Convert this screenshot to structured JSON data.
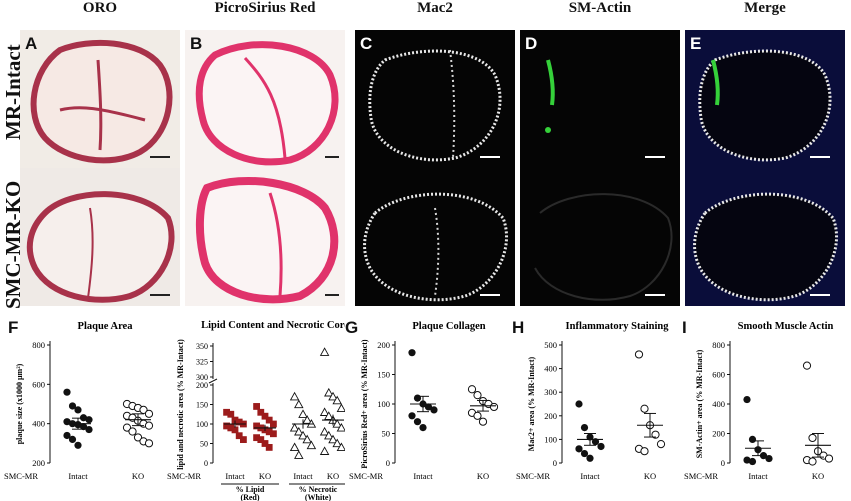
{
  "columns": [
    "ORO",
    "PicroSirius  Red",
    "Mac2",
    "SM-Actin",
    "Merge"
  ],
  "rows": [
    "MR-Intact",
    "SMC-MR-KO"
  ],
  "panel_letters": [
    "A",
    "B",
    "C",
    "D",
    "E"
  ],
  "chart_data": [
    {
      "letter": "F",
      "type": "scatter",
      "title": "Plaque Area",
      "ylabel": "plaque size (x1000 µm²)",
      "ylim": [
        200,
        800
      ],
      "yticks": [
        "200",
        "400",
        "600",
        "800"
      ],
      "group_label": "SMC-MR",
      "categories": [
        "Intact",
        "KO"
      ],
      "series": [
        {
          "category": "Intact",
          "marker": "filled-circle",
          "mean": 400,
          "sem": 28,
          "values": [
            560,
            490,
            470,
            430,
            420,
            410,
            400,
            395,
            385,
            370,
            340,
            320,
            290
          ]
        },
        {
          "category": "KO",
          "marker": "open-circle",
          "mean": 420,
          "sem": 30,
          "values": [
            500,
            490,
            480,
            470,
            450,
            440,
            430,
            415,
            400,
            390,
            380,
            360,
            330,
            310,
            300
          ]
        }
      ]
    },
    {
      "letter": "",
      "type": "scatter",
      "title": "Lipid  Content and Necrotic Core",
      "ylabel": "lipid and necrotic area (% MR-Intact)",
      "yticks": [
        "0",
        "50",
        "100",
        "150",
        "200",
        "300",
        "325",
        "350"
      ],
      "group_label": "SMC-MR",
      "categories": [
        "Intact",
        "KO",
        "Intact",
        "KO"
      ],
      "group_labels": [
        "% Lipid (Red)",
        "% Necrotic (White)"
      ],
      "series": [
        {
          "category": "Intact",
          "group": "% Lipid (Red)",
          "marker": "filled-square",
          "mean": 100,
          "sem": 9,
          "values": [
            130,
            125,
            110,
            105,
            100,
            95,
            90,
            85,
            70,
            60
          ]
        },
        {
          "category": "KO",
          "group": "% Lipid (Red)",
          "marker": "filled-square",
          "mean": 90,
          "sem": 8,
          "values": [
            145,
            130,
            120,
            110,
            100,
            95,
            90,
            85,
            80,
            75,
            65,
            60,
            50,
            40
          ]
        },
        {
          "category": "Intact",
          "group": "% Necrotic (White)",
          "marker": "open-triangle",
          "mean": 100,
          "sem": 12,
          "values": [
            170,
            150,
            125,
            110,
            100,
            90,
            80,
            70,
            60,
            45,
            40,
            20
          ]
        },
        {
          "category": "KO",
          "group": "% Necrotic (White)",
          "marker": "open-triangle",
          "mean": 110,
          "sem": 14,
          "values": [
            340,
            180,
            170,
            160,
            140,
            130,
            120,
            110,
            100,
            90,
            80,
            70,
            60,
            50,
            40,
            30
          ]
        }
      ]
    },
    {
      "letter": "G",
      "type": "scatter",
      "title": "Plaque Collagen",
      "ylabel": "PicroSirius Red+ area (% MR-Intact)",
      "ylim": [
        0,
        200
      ],
      "yticks": [
        "0",
        "50",
        "100",
        "150",
        "200"
      ],
      "group_label": "SMC-MR",
      "categories": [
        "Intact",
        "KO"
      ],
      "series": [
        {
          "category": "Intact",
          "marker": "filled-circle",
          "mean": 100,
          "sem": 13,
          "values": [
            187,
            110,
            100,
            95,
            90,
            80,
            70,
            60
          ]
        },
        {
          "category": "KO",
          "marker": "open-circle",
          "mean": 97,
          "sem": 9,
          "values": [
            125,
            115,
            105,
            100,
            95,
            85,
            80,
            70
          ]
        }
      ]
    },
    {
      "letter": "H",
      "type": "scatter",
      "title": "Inflammatory Staining",
      "ylabel": "Mac2+ area (% MR-Intact)",
      "ylim": [
        0,
        500
      ],
      "yticks": [
        "0",
        "100",
        "200",
        "300",
        "400",
        "500"
      ],
      "group_label": "SMC-MR",
      "categories": [
        "Intact",
        "KO"
      ],
      "series": [
        {
          "category": "Intact",
          "marker": "filled-circle",
          "mean": 100,
          "sem": 25,
          "values": [
            250,
            150,
            110,
            90,
            70,
            60,
            40,
            20
          ]
        },
        {
          "category": "KO",
          "marker": "open-circle",
          "mean": 160,
          "sem": 50,
          "values": [
            460,
            230,
            160,
            120,
            80,
            60,
            50
          ]
        }
      ]
    },
    {
      "letter": "I",
      "type": "scatter",
      "title": "Smooth Muscle Actin",
      "ylabel": "SM-Actin+ area (% MR-Intact)",
      "ylim": [
        0,
        800
      ],
      "yticks": [
        "0",
        "200",
        "400",
        "600",
        "800"
      ],
      "group_label": "SMC-MR",
      "categories": [
        "Intact",
        "KO"
      ],
      "series": [
        {
          "category": "Intact",
          "marker": "filled-circle",
          "mean": 100,
          "sem": 50,
          "values": [
            430,
            160,
            90,
            50,
            30,
            20,
            10
          ]
        },
        {
          "category": "KO",
          "marker": "open-circle",
          "mean": 120,
          "sem": 80,
          "values": [
            660,
            170,
            80,
            50,
            30,
            20,
            10
          ]
        }
      ]
    }
  ],
  "colors": {
    "oro_red": "#a8324a",
    "sirius": "#e0336b",
    "mac2": "#f2f2f2",
    "actin": "#35d13a",
    "nuclei": "#1f3fd8",
    "lipid_square": "#9c1c1c"
  }
}
